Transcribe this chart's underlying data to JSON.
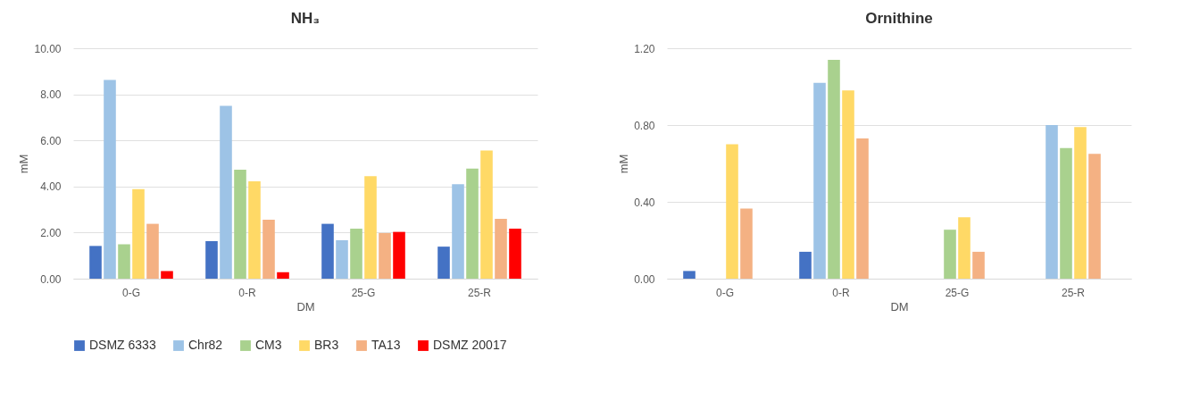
{
  "chart_data": [
    {
      "type": "bar",
      "title": "NH₃",
      "xlabel": "DM",
      "ylabel": "mM",
      "categories": [
        "0-G",
        "0-R",
        "25-G",
        "25-R"
      ],
      "series": [
        {
          "name": "DSMZ 6333",
          "color": "#4472c4",
          "values": [
            1.42,
            1.63,
            2.38,
            1.39
          ]
        },
        {
          "name": "Chr82",
          "color": "#9dc3e6",
          "values": [
            8.62,
            7.5,
            1.67,
            4.1
          ]
        },
        {
          "name": "CM3",
          "color": "#a9d18e",
          "values": [
            1.49,
            4.73,
            2.17,
            4.78
          ]
        },
        {
          "name": "BR3",
          "color": "#ffd966",
          "values": [
            3.89,
            4.22,
            4.45,
            5.56
          ]
        },
        {
          "name": "TA13",
          "color": "#f4b183",
          "values": [
            2.38,
            2.56,
            1.98,
            2.6
          ]
        },
        {
          "name": "DSMZ 20017",
          "color": "#ff0000",
          "values": [
            0.33,
            0.28,
            2.03,
            2.17
          ]
        }
      ],
      "ylim": [
        0,
        10
      ],
      "yticks": [
        {
          "value": 0,
          "label": "0.00"
        },
        {
          "value": 2,
          "label": "2.00"
        },
        {
          "value": 4,
          "label": "4.00"
        },
        {
          "value": 6,
          "label": "6.00"
        },
        {
          "value": 8,
          "label": "8.00"
        },
        {
          "value": 10,
          "label": "10.00"
        }
      ],
      "grid": "y",
      "legend": "bottom"
    },
    {
      "type": "bar",
      "title": "Ornithine",
      "xlabel": "DM",
      "ylabel": "mM",
      "categories": [
        "0-G",
        "0-R",
        "25-G",
        "25-R"
      ],
      "series": [
        {
          "name": "DSMZ 6333",
          "color": "#4472c4",
          "values": [
            0.04,
            0.14,
            null,
            null
          ]
        },
        {
          "name": "Chr82",
          "color": "#9dc3e6",
          "values": [
            null,
            1.02,
            null,
            0.8
          ]
        },
        {
          "name": "CM3",
          "color": "#a9d18e",
          "values": [
            null,
            1.14,
            0.255,
            0.68
          ]
        },
        {
          "name": "BR3",
          "color": "#ffd966",
          "values": [
            0.7,
            0.98,
            0.32,
            0.79
          ]
        },
        {
          "name": "TA13",
          "color": "#f4b183",
          "values": [
            0.365,
            0.73,
            0.14,
            0.65
          ]
        },
        {
          "name": "DSMZ 20017",
          "color": "#ff0000",
          "values": [
            null,
            null,
            null,
            null
          ]
        }
      ],
      "ylim": [
        0,
        1.2
      ],
      "yticks": [
        {
          "value": 0,
          "label": "0.00"
        },
        {
          "value": 0.4,
          "label": "0.40"
        },
        {
          "value": 0.8,
          "label": "0.80"
        },
        {
          "value": 1.2,
          "label": "1.20"
        }
      ],
      "grid": "y",
      "legend": "bottom"
    }
  ]
}
